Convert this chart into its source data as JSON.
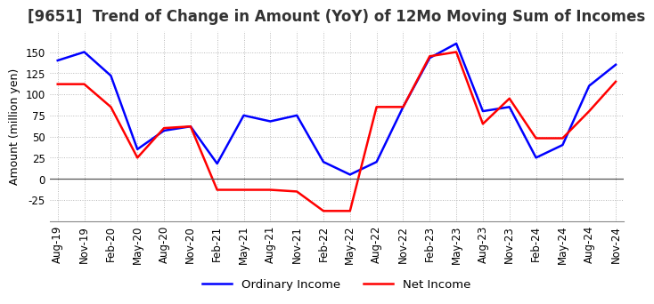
{
  "title": "[9651]  Trend of Change in Amount (YoY) of 12Mo Moving Sum of Incomes",
  "ylabel": "Amount (million yen)",
  "x_labels": [
    "Aug-19",
    "Nov-19",
    "Feb-20",
    "May-20",
    "Aug-20",
    "Nov-20",
    "Feb-21",
    "May-21",
    "Aug-21",
    "Nov-21",
    "Feb-22",
    "May-22",
    "Aug-22",
    "Nov-22",
    "Feb-23",
    "May-23",
    "Aug-23",
    "Nov-23",
    "Feb-24",
    "May-24",
    "Aug-24",
    "Nov-24"
  ],
  "ordinary_income": [
    140,
    150,
    122,
    35,
    57,
    62,
    18,
    75,
    68,
    75,
    20,
    5,
    20,
    85,
    143,
    160,
    80,
    85,
    25,
    40,
    110,
    135
  ],
  "net_income": [
    112,
    112,
    85,
    25,
    60,
    62,
    -13,
    -13,
    -13,
    -15,
    -38,
    -38,
    85,
    85,
    145,
    150,
    65,
    95,
    48,
    48,
    80,
    115
  ],
  "ordinary_color": "#0000ff",
  "net_color": "#ff0000",
  "ylim": [
    -50,
    175
  ],
  "yticks": [
    -25,
    0,
    25,
    50,
    75,
    100,
    125,
    150
  ],
  "background_color": "#ffffff",
  "grid_color": "#b0b0b0",
  "title_fontsize": 12,
  "axis_fontsize": 9,
  "tick_fontsize": 8.5,
  "legend_fontsize": 9.5
}
